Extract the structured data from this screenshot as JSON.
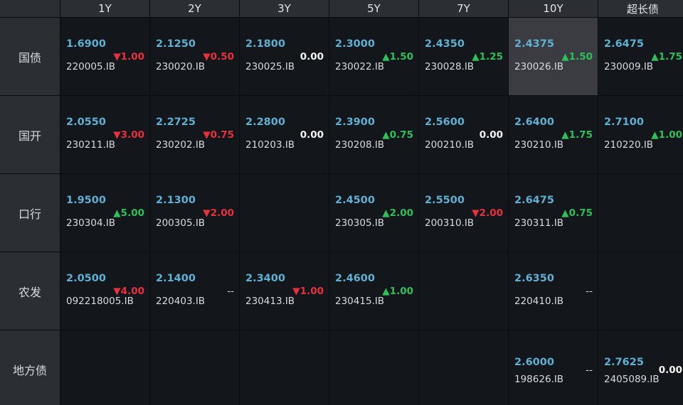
{
  "headers": [
    "",
    "1Y",
    "2Y",
    "3Y",
    "5Y",
    "7Y",
    "10Y",
    "超长债"
  ],
  "rows": [
    {
      "label": "国债",
      "cells": [
        {
          "rate": "1.6900",
          "code": "220005.IB",
          "chg": "▼1.00",
          "dir": "down"
        },
        {
          "rate": "2.1250",
          "code": "230020.IB",
          "chg": "▼0.50",
          "dir": "down"
        },
        {
          "rate": "2.1800",
          "code": "230025.IB",
          "chg": "0.00",
          "dir": "flat"
        },
        {
          "rate": "2.3000",
          "code": "230022.IB",
          "chg": "▲1.50",
          "dir": "up"
        },
        {
          "rate": "2.4350",
          "code": "230028.IB",
          "chg": "▲1.25",
          "dir": "up"
        },
        {
          "rate": "2.4375",
          "code": "230026.IB",
          "chg": "▲1.50",
          "dir": "up",
          "highlight": true
        },
        {
          "rate": "2.6475",
          "code": "230009.IB",
          "chg": "▲1.75",
          "dir": "up"
        }
      ]
    },
    {
      "label": "国开",
      "cells": [
        {
          "rate": "2.0550",
          "code": "230211.IB",
          "chg": "▼3.00",
          "dir": "down"
        },
        {
          "rate": "2.2725",
          "code": "230202.IB",
          "chg": "▼0.75",
          "dir": "down"
        },
        {
          "rate": "2.2800",
          "code": "210203.IB",
          "chg": "0.00",
          "dir": "flat"
        },
        {
          "rate": "2.3900",
          "code": "230208.IB",
          "chg": "▲0.75",
          "dir": "up"
        },
        {
          "rate": "2.5600",
          "code": "200210.IB",
          "chg": "0.00",
          "dir": "flat"
        },
        {
          "rate": "2.6400",
          "code": "230210.IB",
          "chg": "▲1.75",
          "dir": "up"
        },
        {
          "rate": "2.7100",
          "code": "210220.IB",
          "chg": "▲1.00",
          "dir": "up"
        }
      ]
    },
    {
      "label": "口行",
      "cells": [
        {
          "rate": "1.9500",
          "code": "230304.IB",
          "chg": "▲5.00",
          "dir": "up"
        },
        {
          "rate": "2.1300",
          "code": "200305.IB",
          "chg": "▼2.00",
          "dir": "down"
        },
        null,
        {
          "rate": "2.4500",
          "code": "230305.IB",
          "chg": "▲2.00",
          "dir": "up"
        },
        {
          "rate": "2.5500",
          "code": "200310.IB",
          "chg": "▼2.00",
          "dir": "down"
        },
        {
          "rate": "2.6475",
          "code": "230311.IB",
          "chg": "▲0.75",
          "dir": "up"
        },
        null
      ]
    },
    {
      "label": "农发",
      "cells": [
        {
          "rate": "2.0500",
          "code": "092218005.IB",
          "chg": "▼4.00",
          "dir": "down"
        },
        {
          "rate": "2.1400",
          "code": "220403.IB",
          "chg": "--",
          "dir": "none"
        },
        {
          "rate": "2.3400",
          "code": "230413.IB",
          "chg": "▼1.00",
          "dir": "down"
        },
        {
          "rate": "2.4600",
          "code": "230415.IB",
          "chg": "▲1.00",
          "dir": "up"
        },
        null,
        {
          "rate": "2.6350",
          "code": "220410.IB",
          "chg": "--",
          "dir": "none"
        },
        null
      ]
    },
    {
      "label": "地方债",
      "cells": [
        null,
        null,
        null,
        null,
        null,
        {
          "rate": "2.6000",
          "code": "198626.IB",
          "chg": "--",
          "dir": "none"
        },
        {
          "rate": "2.7625",
          "code": "2405089.IB",
          "chg": "0.00",
          "dir": "flat"
        }
      ]
    }
  ]
}
